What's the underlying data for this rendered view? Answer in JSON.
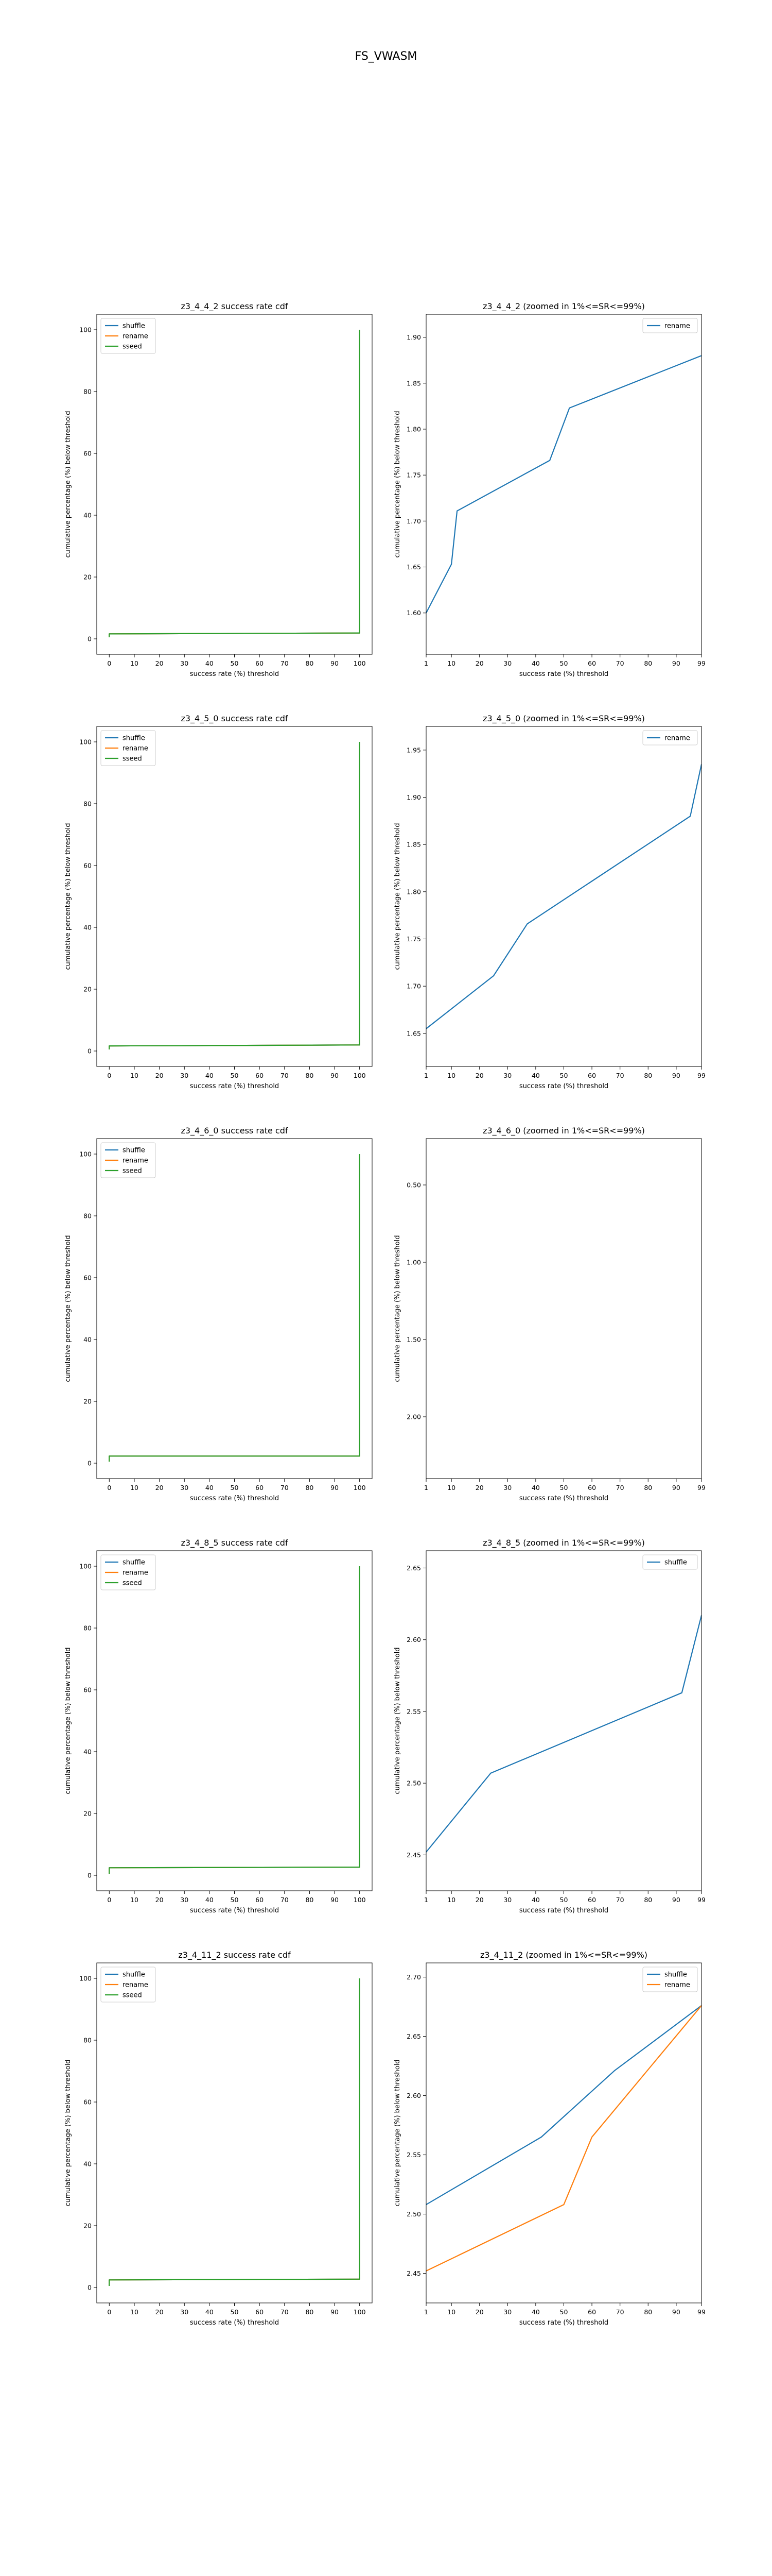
{
  "figure": {
    "title": "FS_VWASM"
  },
  "colors": {
    "shuffle": "#1f77b4",
    "rename": "#ff7f0e",
    "sseed": "#2ca02c"
  },
  "chart_data": [
    {
      "type": "line",
      "title": "z3_4_4_2 success rate cdf",
      "xlabel": "success rate (%) threshold",
      "ylabel": "cumulative percentage (%) below threshold",
      "xlim": [
        -5,
        105
      ],
      "ylim": [
        -5,
        105
      ],
      "xticks": [
        0,
        10,
        20,
        30,
        40,
        50,
        60,
        70,
        80,
        90,
        100
      ],
      "yticks": [
        0,
        20,
        40,
        60,
        80,
        100
      ],
      "legend": "upper-left",
      "series": [
        {
          "name": "shuffle",
          "color": "#1f77b4",
          "points": [
            [
              0,
              0.5
            ],
            [
              0,
              1.6
            ],
            [
              1,
              1.6
            ],
            [
              99,
              1.9
            ],
            [
              100,
              1.9
            ],
            [
              100,
              100
            ]
          ]
        },
        {
          "name": "rename",
          "color": "#ff7f0e",
          "points": [
            [
              0,
              0.5
            ],
            [
              0,
              1.6
            ],
            [
              1,
              1.6
            ],
            [
              99,
              1.9
            ],
            [
              100,
              1.9
            ],
            [
              100,
              100
            ]
          ]
        },
        {
          "name": "sseed",
          "color": "#2ca02c",
          "points": [
            [
              0,
              0.5
            ],
            [
              0,
              1.6
            ],
            [
              1,
              1.6
            ],
            [
              99,
              1.9
            ],
            [
              100,
              1.9
            ],
            [
              100,
              100
            ]
          ]
        }
      ]
    },
    {
      "type": "line",
      "title": "z3_4_4_2 (zoomed in 1%<=SR<=99%)",
      "xlabel": "success rate (%) threshold",
      "ylabel": "cumulative percentage (%) below threshold",
      "xlim": [
        1,
        99
      ],
      "ylim": [
        1.555,
        1.925
      ],
      "xticks": [
        1,
        10,
        20,
        30,
        40,
        50,
        60,
        70,
        80,
        90,
        99
      ],
      "yticks": [
        1.6,
        1.65,
        1.7,
        1.75,
        1.8,
        1.85,
        1.9
      ],
      "legend": "upper-right",
      "series": [
        {
          "name": "rename",
          "color": "#1f77b4",
          "points": [
            [
              1,
              1.6
            ],
            [
              10,
              1.653
            ],
            [
              12,
              1.711
            ],
            [
              45,
              1.766
            ],
            [
              52,
              1.823
            ],
            [
              99,
              1.88
            ]
          ]
        }
      ]
    },
    {
      "type": "line",
      "title": "z3_4_5_0 success rate cdf",
      "xlabel": "success rate (%) threshold",
      "ylabel": "cumulative percentage (%) below threshold",
      "xlim": [
        -5,
        105
      ],
      "ylim": [
        -5,
        105
      ],
      "xticks": [
        0,
        10,
        20,
        30,
        40,
        50,
        60,
        70,
        80,
        90,
        100
      ],
      "yticks": [
        0,
        20,
        40,
        60,
        80,
        100
      ],
      "legend": "upper-left",
      "series": [
        {
          "name": "shuffle",
          "color": "#1f77b4",
          "points": [
            [
              0,
              0.5
            ],
            [
              0,
              1.65
            ],
            [
              1,
              1.65
            ],
            [
              99,
              1.95
            ],
            [
              100,
              1.95
            ],
            [
              100,
              100
            ]
          ]
        },
        {
          "name": "rename",
          "color": "#ff7f0e",
          "points": [
            [
              0,
              0.5
            ],
            [
              0,
              1.65
            ],
            [
              1,
              1.65
            ],
            [
              99,
              1.95
            ],
            [
              100,
              1.95
            ],
            [
              100,
              100
            ]
          ]
        },
        {
          "name": "sseed",
          "color": "#2ca02c",
          "points": [
            [
              0,
              0.5
            ],
            [
              0,
              1.65
            ],
            [
              1,
              1.65
            ],
            [
              99,
              1.95
            ],
            [
              100,
              1.95
            ],
            [
              100,
              100
            ]
          ]
        }
      ]
    },
    {
      "type": "line",
      "title": "z3_4_5_0 (zoomed in 1%<=SR<=99%)",
      "xlabel": "success rate (%) threshold",
      "ylabel": "cumulative percentage (%) below threshold",
      "xlim": [
        1,
        99
      ],
      "ylim": [
        1.615,
        1.975
      ],
      "xticks": [
        1,
        10,
        20,
        30,
        40,
        50,
        60,
        70,
        80,
        90,
        99
      ],
      "yticks": [
        1.65,
        1.7,
        1.75,
        1.8,
        1.85,
        1.9,
        1.95
      ],
      "legend": "upper-right",
      "series": [
        {
          "name": "rename",
          "color": "#1f77b4",
          "points": [
            [
              1,
              1.655
            ],
            [
              25,
              1.711
            ],
            [
              37,
              1.766
            ],
            [
              95,
              1.88
            ],
            [
              99,
              1.935
            ]
          ]
        }
      ]
    },
    {
      "type": "line",
      "title": "z3_4_6_0 success rate cdf",
      "xlabel": "success rate (%) threshold",
      "ylabel": "cumulative percentage (%) below threshold",
      "xlim": [
        -5,
        105
      ],
      "ylim": [
        -5,
        105
      ],
      "xticks": [
        0,
        10,
        20,
        30,
        40,
        50,
        60,
        70,
        80,
        90,
        100
      ],
      "yticks": [
        0,
        20,
        40,
        60,
        80,
        100
      ],
      "legend": "upper-left",
      "series": [
        {
          "name": "shuffle",
          "color": "#1f77b4",
          "points": [
            [
              0,
              0.5
            ],
            [
              0,
              2.3
            ],
            [
              1,
              2.3
            ],
            [
              99,
              2.3
            ],
            [
              100,
              2.3
            ],
            [
              100,
              100
            ]
          ]
        },
        {
          "name": "rename",
          "color": "#ff7f0e",
          "points": [
            [
              0,
              0.5
            ],
            [
              0,
              2.3
            ],
            [
              1,
              2.3
            ],
            [
              99,
              2.3
            ],
            [
              100,
              2.3
            ],
            [
              100,
              100
            ]
          ]
        },
        {
          "name": "sseed",
          "color": "#2ca02c",
          "points": [
            [
              0,
              0.5
            ],
            [
              0,
              2.3
            ],
            [
              1,
              2.3
            ],
            [
              99,
              2.3
            ],
            [
              100,
              2.3
            ],
            [
              100,
              100
            ]
          ]
        }
      ]
    },
    {
      "type": "line",
      "title": "z3_4_6_0 (zoomed in 1%<=SR<=99%)",
      "xlabel": "success rate (%) threshold",
      "ylabel": "cumulative percentage (%) below threshold",
      "xlim": [
        1,
        99
      ],
      "ylim": [
        0.2,
        2.4
      ],
      "yinverted": true,
      "xticks": [
        1,
        10,
        20,
        30,
        40,
        50,
        60,
        70,
        80,
        90,
        99
      ],
      "yticks": [
        0.5,
        1.0,
        1.5,
        2.0
      ],
      "legend": "none",
      "series": []
    },
    {
      "type": "line",
      "title": "z3_4_8_5 success rate cdf",
      "xlabel": "success rate (%) threshold",
      "ylabel": "cumulative percentage (%) below threshold",
      "xlim": [
        -5,
        105
      ],
      "ylim": [
        -5,
        105
      ],
      "xticks": [
        0,
        10,
        20,
        30,
        40,
        50,
        60,
        70,
        80,
        90,
        100
      ],
      "yticks": [
        0,
        20,
        40,
        60,
        80,
        100
      ],
      "legend": "upper-left",
      "series": [
        {
          "name": "shuffle",
          "color": "#1f77b4",
          "points": [
            [
              0,
              0.5
            ],
            [
              0,
              2.45
            ],
            [
              1,
              2.45
            ],
            [
              99,
              2.65
            ],
            [
              100,
              2.65
            ],
            [
              100,
              100
            ]
          ]
        },
        {
          "name": "rename",
          "color": "#ff7f0e",
          "points": [
            [
              0,
              0.5
            ],
            [
              0,
              2.45
            ],
            [
              1,
              2.45
            ],
            [
              99,
              2.65
            ],
            [
              100,
              2.65
            ],
            [
              100,
              100
            ]
          ]
        },
        {
          "name": "sseed",
          "color": "#2ca02c",
          "points": [
            [
              0,
              0.5
            ],
            [
              0,
              2.45
            ],
            [
              1,
              2.45
            ],
            [
              99,
              2.65
            ],
            [
              100,
              2.65
            ],
            [
              100,
              100
            ]
          ]
        }
      ]
    },
    {
      "type": "line",
      "title": "z3_4_8_5 (zoomed in 1%<=SR<=99%)",
      "xlabel": "success rate (%) threshold",
      "ylabel": "cumulative percentage (%) below threshold",
      "xlim": [
        1,
        99
      ],
      "ylim": [
        2.425,
        2.662
      ],
      "xticks": [
        1,
        10,
        20,
        30,
        40,
        50,
        60,
        70,
        80,
        90,
        99
      ],
      "yticks": [
        2.45,
        2.5,
        2.55,
        2.6,
        2.65
      ],
      "legend": "upper-right",
      "series": [
        {
          "name": "shuffle",
          "color": "#1f77b4",
          "points": [
            [
              1,
              2.452
            ],
            [
              24,
              2.507
            ],
            [
              92,
              2.563
            ],
            [
              99,
              2.617
            ]
          ]
        }
      ]
    },
    {
      "type": "line",
      "title": "z3_4_11_2 success rate cdf",
      "xlabel": "success rate (%) threshold",
      "ylabel": "cumulative percentage (%) below threshold",
      "xlim": [
        -5,
        105
      ],
      "ylim": [
        -5,
        105
      ],
      "xticks": [
        0,
        10,
        20,
        30,
        40,
        50,
        60,
        70,
        80,
        90,
        100
      ],
      "yticks": [
        0,
        20,
        40,
        60,
        80,
        100
      ],
      "legend": "upper-left",
      "series": [
        {
          "name": "shuffle",
          "color": "#1f77b4",
          "points": [
            [
              0,
              0.5
            ],
            [
              0,
              2.45
            ],
            [
              1,
              2.45
            ],
            [
              99,
              2.7
            ],
            [
              100,
              2.7
            ],
            [
              100,
              100
            ]
          ]
        },
        {
          "name": "rename",
          "color": "#ff7f0e",
          "points": [
            [
              0,
              0.5
            ],
            [
              0,
              2.45
            ],
            [
              1,
              2.45
            ],
            [
              99,
              2.7
            ],
            [
              100,
              2.7
            ],
            [
              100,
              100
            ]
          ]
        },
        {
          "name": "sseed",
          "color": "#2ca02c",
          "points": [
            [
              0,
              0.5
            ],
            [
              0,
              2.45
            ],
            [
              1,
              2.45
            ],
            [
              99,
              2.7
            ],
            [
              100,
              2.7
            ],
            [
              100,
              100
            ]
          ]
        }
      ]
    },
    {
      "type": "line",
      "title": "z3_4_11_2 (zoomed in 1%<=SR<=99%)",
      "xlabel": "success rate (%) threshold",
      "ylabel": "cumulative percentage (%) below threshold",
      "xlim": [
        1,
        99
      ],
      "ylim": [
        2.425,
        2.712
      ],
      "xticks": [
        1,
        10,
        20,
        30,
        40,
        50,
        60,
        70,
        80,
        90,
        99
      ],
      "yticks": [
        2.45,
        2.5,
        2.55,
        2.6,
        2.65,
        2.7
      ],
      "legend": "upper-right",
      "series": [
        {
          "name": "shuffle",
          "color": "#1f77b4",
          "points": [
            [
              1,
              2.508
            ],
            [
              42,
              2.565
            ],
            [
              68,
              2.621
            ],
            [
              99,
              2.676
            ]
          ]
        },
        {
          "name": "rename",
          "color": "#ff7f0e",
          "points": [
            [
              1,
              2.452
            ],
            [
              50,
              2.508
            ],
            [
              60,
              2.565
            ],
            [
              99,
              2.676
            ]
          ]
        }
      ]
    }
  ]
}
